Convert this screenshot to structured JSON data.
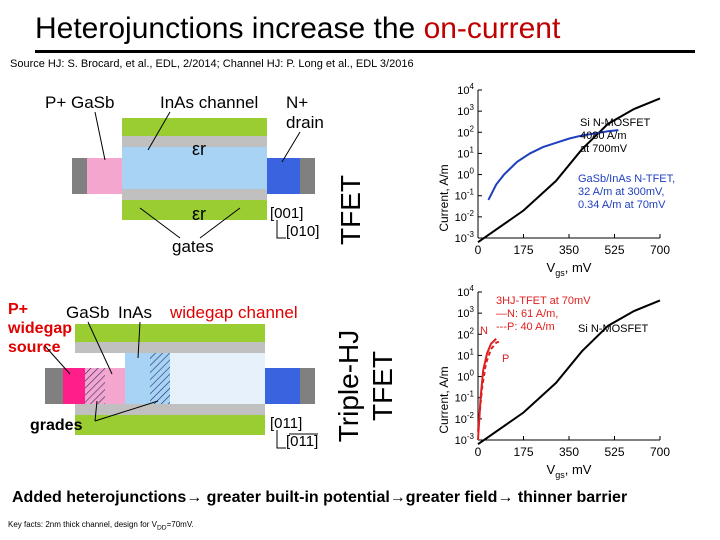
{
  "title": {
    "main": "Heterojunctions increase the ",
    "highlight": "on-current"
  },
  "source": {
    "text": "Source HJ: S. Brocard, et al., EDL, 2/2014; Channel HJ: P. Long et al., EDL  3/2016"
  },
  "top_device": {
    "label_source": "P+ GaSb",
    "label_channel": "InAs channel",
    "label_drain_1": "N+",
    "label_drain_2": "drain",
    "label_eps_top": "εr",
    "label_eps_bottom": "εr",
    "label_gates": "gates",
    "axis_1": "[001]",
    "axis_2": "[010]",
    "side_label": "TFET"
  },
  "bottom_device": {
    "label_p_1": "P+",
    "label_p_2": "widegap",
    "label_p_3": "source",
    "label_gasb": "GaSb",
    "label_inas": "InAs",
    "label_channel": "widegap channel",
    "label_grades": "grades",
    "axis_1": "[011]",
    "axis_2": "[011]",
    "side_label_1": "Triple-HJ",
    "side_label_2": "TFET"
  },
  "chart_data": [
    {
      "type": "line",
      "title": "",
      "xlabel": "Vgs, mV",
      "ylabel": "Current, A/m",
      "x_ticks": [
        "0",
        "175",
        "350",
        "525",
        "700"
      ],
      "y_ticks": [
        "10-3",
        "10-2",
        "10-1",
        "100",
        "101",
        "102",
        "103",
        "104"
      ],
      "ylim": [
        -3,
        4
      ],
      "xlim": [
        0,
        700
      ],
      "annotations": [
        "Si N-MOSFET",
        "4080 A/m",
        "at 700mV",
        "GaSb/InAs N-TFET,",
        "32 A/m at  300mV,",
        "0.34 A/m at 70mV"
      ],
      "series": [
        {
          "name": "Si N-MOSFET",
          "color": "#000000",
          "x": [
            0,
            175,
            300,
            400,
            500,
            600,
            700
          ],
          "y": [
            -3.2,
            -1.7,
            -0.3,
            1.2,
            2.4,
            3.1,
            3.6
          ]
        },
        {
          "name": "GaSb/InAs N-TFET",
          "color": "#1f3fbf",
          "x": [
            40,
            70,
            100,
            150,
            200,
            250,
            300,
            350,
            400,
            450,
            500,
            540
          ],
          "y": [
            -1.2,
            -0.47,
            0.0,
            0.6,
            1.0,
            1.3,
            1.5,
            1.7,
            1.85,
            1.95,
            2.05,
            2.1
          ]
        }
      ]
    },
    {
      "type": "line",
      "title": "",
      "xlabel": "Vgs, mV",
      "ylabel": "Current, A/m",
      "x_ticks": [
        "0",
        "175",
        "350",
        "525",
        "700"
      ],
      "y_ticks": [
        "10-3",
        "10-2",
        "10-1",
        "100",
        "101",
        "102",
        "103",
        "104"
      ],
      "ylim": [
        -3,
        4
      ],
      "xlim": [
        0,
        700
      ],
      "annotations": [
        "3HJ-TFET at 70mV",
        "—N: 61 A/m,",
        "---P: 40 A/m",
        "Si N-MOSFET",
        "N",
        "P"
      ],
      "series": [
        {
          "name": "Si N-MOSFET",
          "color": "#000000",
          "x": [
            0,
            175,
            300,
            400,
            500,
            600,
            700
          ],
          "y": [
            -3.2,
            -1.7,
            -0.3,
            1.2,
            2.4,
            3.1,
            3.6
          ]
        },
        {
          "name": "3HJ-TFET N",
          "color": "#e02020",
          "x": [
            0,
            10,
            20,
            35,
            50,
            70
          ],
          "y": [
            -3.0,
            -1.0,
            0.3,
            1.1,
            1.55,
            1.79
          ]
        },
        {
          "name": "3HJ-TFET P",
          "color": "#e02020",
          "dashed": true,
          "x": [
            0,
            15,
            30,
            50,
            70,
            90
          ],
          "y": [
            -2.6,
            -0.6,
            0.6,
            1.3,
            1.6,
            1.7
          ]
        }
      ]
    }
  ],
  "bottom_text": "Added heterojunctions→ greater built-in potential→greater field→ thinner barrier",
  "key_facts": "Key facts: 2nm thick channel, design for V",
  "key_facts_sub": "DD",
  "key_facts_tail": "=70mV."
}
